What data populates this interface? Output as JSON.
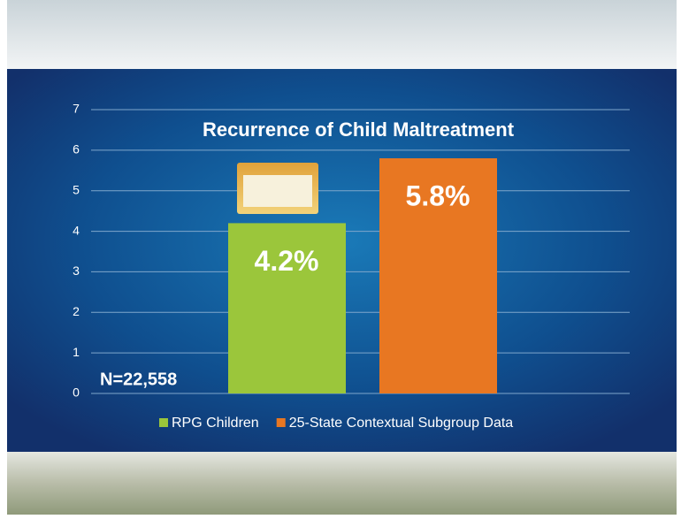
{
  "chart_data": {
    "type": "bar",
    "title": "Recurrence of Child Maltreatment",
    "annotation": "N=22,558",
    "series": [
      {
        "name": "RPG Children",
        "color": "#9bc63b",
        "values": [
          4.2
        ],
        "value_labels": [
          "4.2%"
        ]
      },
      {
        "name": "25-State Contextual Subgroup Data",
        "color": "#e87722",
        "values": [
          5.8
        ],
        "value_labels": [
          "5.8%"
        ]
      }
    ],
    "ylim": [
      0,
      7
    ],
    "yticks": [
      0,
      1,
      2,
      3,
      4,
      5,
      6,
      7
    ],
    "grid": true,
    "legend": "bottom"
  }
}
